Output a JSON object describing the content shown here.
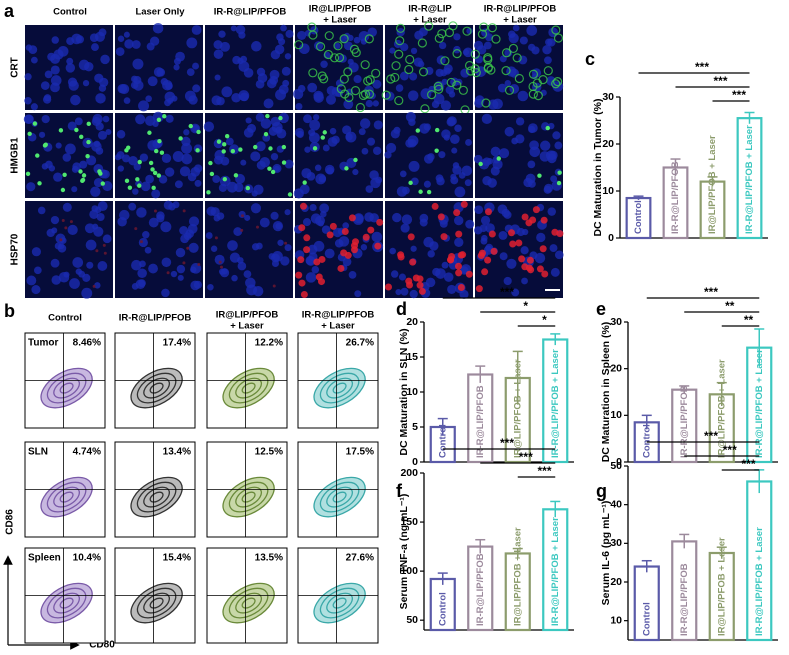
{
  "panel_labels": [
    "a",
    "b"
  ],
  "panel_a": {
    "columns": [
      [
        "Control"
      ],
      [
        "Laser Only"
      ],
      [
        "IR-R@LIP/PFOB"
      ],
      [
        "IR@LIP/PFOB",
        "+ Laser"
      ],
      [
        "IR-R@LIP",
        "+ Laser"
      ],
      [
        "IR-R@LIP/PFOB",
        "+ Laser"
      ]
    ],
    "rows": [
      "CRT",
      "HMGB1",
      "HSP70"
    ]
  },
  "panel_b": {
    "columns": [
      [
        "Control"
      ],
      [
        "IR-R@LIP/PFOB"
      ],
      [
        "IR@LIP/PFOB",
        "+ Laser"
      ],
      [
        "IR-R@LIP/PFOB",
        "+ Laser"
      ]
    ],
    "rows": [
      "Tumor",
      "SLN",
      "Spleen"
    ],
    "percentages": [
      [
        "8.46%",
        "17.4%",
        "12.2%",
        "26.7%"
      ],
      [
        "4.74%",
        "13.4%",
        "12.5%",
        "17.5%"
      ],
      [
        "10.4%",
        "15.4%",
        "13.5%",
        "27.6%"
      ]
    ],
    "y_label": "CD86",
    "x_label": "CD80"
  },
  "chart_data": [
    {
      "type": "bar",
      "panel_label": "c",
      "ylabel": "DC Maturation in Tumor (%)",
      "categories": [
        "Control",
        "IR-R@LIP/PFOB",
        "IR@LIP/PFOB + Laser",
        "IR-R@LIP/PFOB + Laser"
      ],
      "values": [
        8.5,
        15,
        12,
        25.5
      ],
      "errors": [
        0.4,
        1.8,
        1,
        1.2
      ],
      "colors": [
        "#5a5aa8",
        "#9c8a9c",
        "#8c9c6c",
        "#3cc8c0"
      ],
      "ylim": [
        0,
        30
      ],
      "yticks": [
        0,
        10,
        20,
        30
      ],
      "significance": [
        "***",
        "***",
        "***"
      ]
    },
    {
      "type": "bar",
      "panel_label": "d",
      "ylabel": "DC Maturation in SLN (%)",
      "categories": [
        "Control",
        "IR-R@LIP/PFOB",
        "IR@LIP/PFOB + Laser",
        "IR-R@LIP/PFOB + Laser"
      ],
      "values": [
        5,
        12.5,
        12,
        17.5
      ],
      "errors": [
        1.2,
        1.2,
        3.8,
        0.8
      ],
      "colors": [
        "#5a5aa8",
        "#9c8a9c",
        "#8c9c6c",
        "#3cc8c0"
      ],
      "ylim": [
        0,
        20
      ],
      "yticks": [
        0,
        5,
        10,
        15,
        20
      ],
      "significance": [
        "***",
        "*",
        "*"
      ]
    },
    {
      "type": "bar",
      "panel_label": "e",
      "ylabel": "DC Maturation in Spleen (%)",
      "categories": [
        "Control",
        "IR-R@LIP/PFOB",
        "IR@LIP/PFOB + Laser",
        "IR-R@LIP/PFOB + Laser"
      ],
      "values": [
        8.5,
        15.5,
        14.5,
        24.5
      ],
      "errors": [
        1.5,
        0.8,
        2.5,
        4
      ],
      "colors": [
        "#5a5aa8",
        "#9c8a9c",
        "#8c9c6c",
        "#3cc8c0"
      ],
      "ylim": [
        0,
        30
      ],
      "yticks": [
        0,
        10,
        20,
        30
      ],
      "significance": [
        "***",
        "**",
        "**"
      ]
    },
    {
      "type": "bar",
      "panel_label": "f",
      "ylabel": "Serum TNF-a (ng mL⁻¹)",
      "categories": [
        "Control",
        "IR-R@LIP/PFOB",
        "IR@LIP/PFOB + Laser",
        "IR-R@LIP/PFOB + Laser"
      ],
      "values": [
        92,
        125,
        118,
        163
      ],
      "errors": [
        6,
        7,
        5,
        8
      ],
      "colors": [
        "#5a5aa8",
        "#9c8a9c",
        "#8c9c6c",
        "#3cc8c0"
      ],
      "ylim": [
        40,
        200
      ],
      "yticks": [
        50,
        100,
        150,
        200
      ],
      "significance": [
        "***",
        "***",
        "***"
      ]
    },
    {
      "type": "bar",
      "panel_label": "g",
      "ylabel": "Serum IL-6 (pg mL⁻¹)",
      "categories": [
        "Control",
        "IR-R@LIP/PFOB",
        "IR@LIP/PFOB + Laser",
        "IR-R@LIP/PFOB + Laser"
      ],
      "values": [
        24,
        30.5,
        27.5,
        46
      ],
      "errors": [
        1.5,
        1.8,
        1.5,
        3
      ],
      "colors": [
        "#5a5aa8",
        "#9c8a9c",
        "#8c9c6c",
        "#3cc8c0"
      ],
      "ylim": [
        5,
        50
      ],
      "yticks": [
        10,
        20,
        30,
        40,
        50
      ],
      "significance": [
        "***",
        "***",
        "***"
      ]
    }
  ]
}
